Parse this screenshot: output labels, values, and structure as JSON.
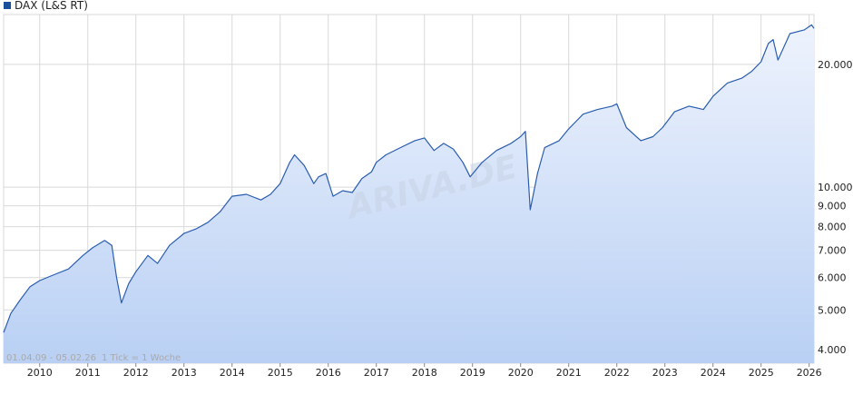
{
  "legend": {
    "label": "DAX (L&S RT)",
    "color": "#1a4f9c"
  },
  "watermark": "ARIVA.DE",
  "footer": {
    "range": "01.04.09 - 05.02.26",
    "tick": "1 Tick = 1 Woche"
  },
  "colors": {
    "line": "#2a5db0",
    "fill_top": "#eef3fd",
    "fill_bottom": "#b9d0f4",
    "grid": "#d9d9d9"
  },
  "chart_data": {
    "type": "area",
    "title": "",
    "xlabel": "",
    "ylabel": "",
    "y_scale": "log",
    "ylim": [
      3700,
      26500
    ],
    "xlim": [
      2009.25,
      2026.1
    ],
    "x_ticks": [
      "2010",
      "2011",
      "2012",
      "2013",
      "2014",
      "2015",
      "2016",
      "2017",
      "2018",
      "2019",
      "2020",
      "2021",
      "2022",
      "2023",
      "2024",
      "2025",
      "2026"
    ],
    "y_ticks": [
      {
        "value": 4000,
        "label": "4.000"
      },
      {
        "value": 5000,
        "label": "5.000"
      },
      {
        "value": 6000,
        "label": "6.000"
      },
      {
        "value": 7000,
        "label": "7.000"
      },
      {
        "value": 8000,
        "label": "8.000"
      },
      {
        "value": 9000,
        "label": "9.000"
      },
      {
        "value": 10000,
        "label": "10.000"
      },
      {
        "value": 20000,
        "label": "20.000"
      }
    ],
    "grid": true,
    "legend_position": "top-left",
    "series": [
      {
        "name": "DAX (L&S RT)",
        "x": [
          2009.25,
          2009.4,
          2009.6,
          2009.8,
          2010.0,
          2010.3,
          2010.6,
          2010.9,
          2011.1,
          2011.35,
          2011.5,
          2011.6,
          2011.7,
          2011.85,
          2012.0,
          2012.25,
          2012.45,
          2012.7,
          2013.0,
          2013.25,
          2013.5,
          2013.75,
          2014.0,
          2014.3,
          2014.6,
          2014.8,
          2015.0,
          2015.2,
          2015.3,
          2015.5,
          2015.7,
          2015.8,
          2015.95,
          2016.1,
          2016.3,
          2016.5,
          2016.7,
          2016.9,
          2017.0,
          2017.2,
          2017.5,
          2017.8,
          2018.0,
          2018.2,
          2018.4,
          2018.6,
          2018.8,
          2018.95,
          2019.2,
          2019.5,
          2019.8,
          2020.0,
          2020.1,
          2020.2,
          2020.35,
          2020.5,
          2020.8,
          2021.0,
          2021.3,
          2021.6,
          2021.9,
          2022.0,
          2022.2,
          2022.5,
          2022.75,
          2022.95,
          2023.2,
          2023.5,
          2023.8,
          2024.0,
          2024.3,
          2024.6,
          2024.8,
          2025.0,
          2025.15,
          2025.25,
          2025.35,
          2025.6,
          2025.9,
          2026.05,
          2026.1
        ],
        "values": [
          4400,
          4900,
          5300,
          5700,
          5900,
          6100,
          6300,
          6800,
          7100,
          7400,
          7200,
          6000,
          5200,
          5800,
          6200,
          6800,
          6500,
          7200,
          7700,
          7900,
          8200,
          8700,
          9500,
          9600,
          9300,
          9600,
          10200,
          11500,
          12000,
          11300,
          10200,
          10600,
          10800,
          9500,
          9800,
          9700,
          10500,
          10900,
          11500,
          12000,
          12500,
          13000,
          13200,
          12300,
          12800,
          12400,
          11500,
          10600,
          11500,
          12300,
          12800,
          13300,
          13700,
          8800,
          10800,
          12500,
          13000,
          13900,
          15100,
          15500,
          15800,
          16000,
          14000,
          13000,
          13300,
          14000,
          15300,
          15800,
          15500,
          16700,
          18000,
          18500,
          19200,
          20300,
          22500,
          23000,
          20500,
          23800,
          24300,
          25000,
          24500
        ]
      }
    ]
  }
}
